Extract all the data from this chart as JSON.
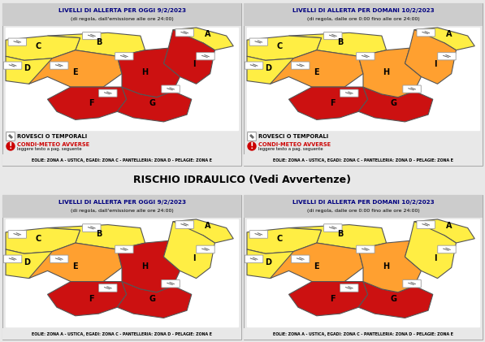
{
  "title_today": "LIVELLI DI ALLERTA PER OGGI 9/2/2023",
  "subtitle_today": "(di regola, dall'emissione alle ore 24:00)",
  "title_tomorrow": "LIVELLI DI ALLERTA PER DOMANI 10/2/2023",
  "subtitle_tomorrow": "(di regola, dalle ore 0:00 fino alle ore 24:00)",
  "rischio_title": "RISCHIO IDRAULICO (Vedi Avvertenze)",
  "footer": "EOLIE: ZONA A - USTICA, EGADI: ZONA C - PANTELLERIA: ZONA D - PELAGIE: ZONA E",
  "legend_storm": "ROVESCI O TEMPORALI",
  "legend_condi": "CONDI-METEO AVVERSE",
  "legend_sub": "leggere testo a pag. seguente",
  "bg_color": "#e8e8e8",
  "header_bg": "#cccccc",
  "color_yellow": "#FFEE44",
  "color_orange": "#FFA030",
  "color_red": "#CC1111",
  "border_color": "#555555",
  "title_color": "#000080",
  "condi_color": "#CC0000"
}
